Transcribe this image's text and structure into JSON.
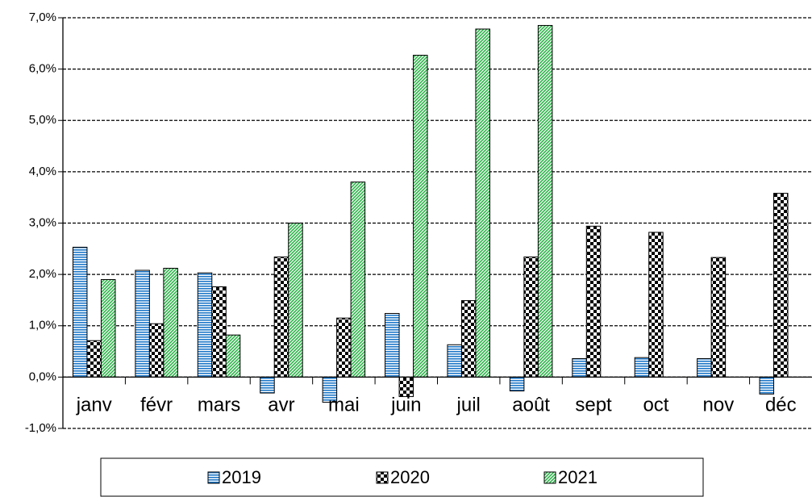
{
  "chart_data": {
    "type": "bar",
    "categories": [
      "janv",
      "févr",
      "mars",
      "avr",
      "mai",
      "juin",
      "juil",
      "août",
      "sept",
      "oct",
      "nov",
      "déc"
    ],
    "series": [
      {
        "name": "2019",
        "color": "#1f78c8",
        "hatch": "horizontal",
        "values": [
          2.53,
          2.08,
          2.03,
          -0.31,
          -0.49,
          1.24,
          0.63,
          -0.27,
          0.36,
          0.38,
          0.36,
          -0.33
        ]
      },
      {
        "name": "2020",
        "color": "#000000",
        "hatch": "checker",
        "values": [
          0.71,
          1.04,
          1.76,
          2.34,
          1.15,
          -0.38,
          1.49,
          2.34,
          2.94,
          2.82,
          2.33,
          3.58
        ]
      },
      {
        "name": "2021",
        "color": "#2eb34a",
        "hatch": "diagonal",
        "values": [
          1.9,
          2.12,
          0.82,
          3.0,
          3.8,
          6.27,
          6.78,
          6.85,
          null,
          null,
          null,
          null
        ]
      }
    ],
    "ylim": [
      -1,
      7
    ],
    "yticks": [
      {
        "value": -1,
        "label": "-1,0%"
      },
      {
        "value": 0,
        "label": "0,0%"
      },
      {
        "value": 1,
        "label": "1,0%"
      },
      {
        "value": 2,
        "label": "2,0%"
      },
      {
        "value": 3,
        "label": "3,0%"
      },
      {
        "value": 4,
        "label": "4,0%"
      },
      {
        "value": 5,
        "label": "5,0%"
      },
      {
        "value": 6,
        "label": "6,0%"
      },
      {
        "value": 7,
        "label": "7,0%"
      }
    ],
    "grid": true,
    "legend": "bottom"
  }
}
